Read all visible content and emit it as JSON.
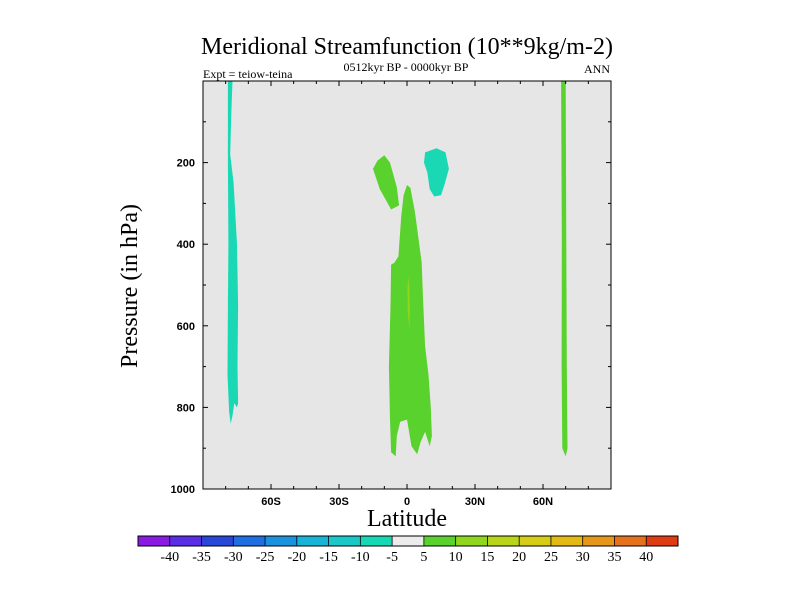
{
  "chart_data": {
    "type": "contour",
    "title": "Meridional Streamfunction (10**9kg/m-2)",
    "subtitle_left": "Expt = teiow-teina",
    "subtitle_center": "0512kyr BP - 0000kyr BP",
    "subtitle_right": "ANN",
    "xlabel": "Latitude",
    "ylabel": "Pressure (in hPa)",
    "xlim": [
      -90,
      90
    ],
    "ylim": [
      1000,
      0
    ],
    "x_ticks": [
      {
        "value": -60,
        "label": "60S"
      },
      {
        "value": -30,
        "label": "30S"
      },
      {
        "value": 0,
        "label": "0"
      },
      {
        "value": 30,
        "label": "30N"
      },
      {
        "value": 60,
        "label": "60N"
      }
    ],
    "y_ticks": [
      {
        "value": 200,
        "label": "200"
      },
      {
        "value": 400,
        "label": "400"
      },
      {
        "value": 600,
        "label": "600"
      },
      {
        "value": 800,
        "label": "800"
      },
      {
        "value": 1000,
        "label": "1000"
      }
    ],
    "background_color": "#e6e6e6",
    "colorbar": {
      "labels": [
        "-40",
        "-35",
        "-30",
        "-25",
        "-20",
        "-15",
        "-10",
        "-5",
        "5",
        "10",
        "15",
        "20",
        "25",
        "30",
        "35",
        "40"
      ],
      "colors": [
        "#8a1be0",
        "#5a2ee6",
        "#2846d8",
        "#1f6fe3",
        "#1b92e0",
        "#17b4d8",
        "#1ac8c8",
        "#16d8b4",
        "#ececec",
        "#5ad22e",
        "#8fd61c",
        "#b8d51a",
        "#d6cd17",
        "#e3b914",
        "#e6971a",
        "#e6711c",
        "#e03c14"
      ]
    },
    "regions": [
      {
        "name": "sh-high-lat-negative",
        "range": "-10 to -5",
        "color": "#1ad8b4",
        "points": [
          [
            -79,
            0
          ],
          [
            -77,
            0
          ],
          [
            -77.5,
            80
          ],
          [
            -78,
            180
          ],
          [
            -76.5,
            250
          ],
          [
            -75,
            400
          ],
          [
            -74.5,
            550
          ],
          [
            -74.8,
            700
          ],
          [
            -74.5,
            790
          ],
          [
            -75,
            800
          ],
          [
            -76.2,
            790
          ],
          [
            -77,
            820
          ],
          [
            -77.8,
            840
          ],
          [
            -78.5,
            810
          ],
          [
            -79.2,
            720
          ],
          [
            -79,
            550
          ],
          [
            -78.8,
            400
          ],
          [
            -79,
            200
          ]
        ]
      },
      {
        "name": "nh-subtropical-negative",
        "range": "-10 to -5",
        "color": "#1ad8b4",
        "points": [
          [
            8,
            175
          ],
          [
            13,
            165
          ],
          [
            17,
            175
          ],
          [
            18.5,
            215
          ],
          [
            16.5,
            255
          ],
          [
            15,
            280
          ],
          [
            12,
            283
          ],
          [
            10,
            265
          ],
          [
            9,
            225
          ],
          [
            7.5,
            200
          ]
        ]
      },
      {
        "name": "sh-subtropical-positive",
        "range": "5 to 10",
        "color": "#5ad22e",
        "points": [
          [
            -15,
            215
          ],
          [
            -13,
            195
          ],
          [
            -10,
            182
          ],
          [
            -7.5,
            200
          ],
          [
            -4.5,
            260
          ],
          [
            -3.5,
            305
          ],
          [
            -7,
            315
          ],
          [
            -9,
            295
          ],
          [
            -12,
            265
          ]
        ]
      },
      {
        "name": "equatorial-positive",
        "range": "5 to 10",
        "color": "#5ad22e",
        "points": [
          [
            -2.5,
            330
          ],
          [
            -1.5,
            280
          ],
          [
            0,
            255
          ],
          [
            1.5,
            262
          ],
          [
            3.5,
            320
          ],
          [
            6.5,
            445
          ],
          [
            7,
            525
          ],
          [
            8,
            650
          ],
          [
            9.5,
            720
          ],
          [
            10.5,
            800
          ],
          [
            11,
            870
          ],
          [
            10,
            895
          ],
          [
            8,
            860
          ],
          [
            6,
            885
          ],
          [
            4.5,
            915
          ],
          [
            2,
            895
          ],
          [
            0,
            830
          ],
          [
            -3,
            835
          ],
          [
            -4.5,
            870
          ],
          [
            -5,
            920
          ],
          [
            -7,
            910
          ],
          [
            -7.5,
            830
          ],
          [
            -8,
            700
          ],
          [
            -7.3,
            550
          ],
          [
            -7,
            450
          ],
          [
            -5.5,
            445
          ],
          [
            -3.8,
            430
          ]
        ]
      },
      {
        "name": "equatorial-core",
        "range": "10 to 15",
        "color": "#8fd61c",
        "points": [
          [
            0.5,
            480
          ],
          [
            1,
            500
          ],
          [
            1.3,
            560
          ],
          [
            1,
            610
          ],
          [
            0.3,
            560
          ],
          [
            0.2,
            510
          ]
        ]
      },
      {
        "name": "nh-high-lat-positive",
        "range": "5 to 10",
        "color": "#5ad22e",
        "points": [
          [
            68,
            0
          ],
          [
            70,
            0
          ],
          [
            70.3,
            400
          ],
          [
            70.5,
            700
          ],
          [
            70.8,
            900
          ],
          [
            70,
            920
          ],
          [
            68.5,
            900
          ],
          [
            68.2,
            700
          ],
          [
            68.3,
            400
          ]
        ]
      }
    ]
  }
}
